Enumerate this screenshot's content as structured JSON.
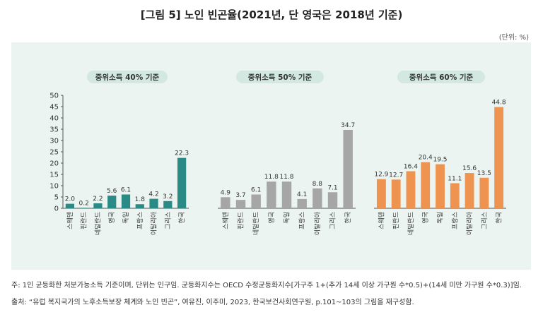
{
  "title": "[그림 5] 노인 빈곤율(2021년, 단 영국은 2018년 기준)",
  "unit": "(단위: %)",
  "notes": {
    "note": "주: 1인 균등화한 처분가능소득 기준이며, 단위는 인구임. 균등화지수는 OECD 수정균등화지수[가구주 1+(추가 14세 이상 가구원 수*0.5)+(14세 미만 가구원 수*0.3)]임.",
    "source": "출처: “유럽 복지국가의 노후소득보장 체계와 노인 빈곤”, 여유진, 이주미, 2023, 한국보건사회연구원, p.101~103의 그림을 재구성함."
  },
  "colors": {
    "panel": "#ecf4f1",
    "series_40": "#2a8a86",
    "series_50": "#a6a6a6",
    "series_60": "#ee9450",
    "pill": "#d3e8e0",
    "axis": "#555555"
  },
  "chart_data": [
    {
      "type": "bar",
      "title": "중위소득 40% 기준",
      "categories": [
        "스웨덴",
        "핀란드",
        "네덜란드",
        "영국",
        "독일",
        "프랑스",
        "이탈리아",
        "그리스",
        "한국"
      ],
      "values": [
        2.0,
        0.2,
        2.2,
        5.6,
        6.1,
        1.8,
        4.2,
        3.2,
        22.3
      ],
      "value_labels": [
        "2.0",
        "0.2",
        "2.2",
        "5.6",
        "6.1",
        "1.8",
        "4.2",
        "3.2",
        "22.3"
      ],
      "ylim": [
        0,
        50
      ],
      "yticks": [
        0,
        5,
        10,
        15,
        20,
        25,
        30,
        35,
        40,
        45,
        50
      ],
      "ytick_labels": [
        "0",
        "5",
        "10",
        "15",
        "20",
        "25",
        "30",
        "35",
        "40",
        "45",
        "50"
      ],
      "color": "#2a8a86"
    },
    {
      "type": "bar",
      "title": "중위소득 50% 기준",
      "categories": [
        "스웨덴",
        "핀란드",
        "네덜란드",
        "영국",
        "독일",
        "프랑스",
        "이탈리아",
        "그리스",
        "한국"
      ],
      "values": [
        4.9,
        3.7,
        6.1,
        11.8,
        11.8,
        4.1,
        8.8,
        7.1,
        34.7
      ],
      "value_labels": [
        "4.9",
        "3.7",
        "6.1",
        "11.8",
        "11.8",
        "4.1",
        "8.8",
        "7.1",
        "34.7"
      ],
      "ylim": [
        0,
        50
      ],
      "color": "#a6a6a6"
    },
    {
      "type": "bar",
      "title": "중위소득 60% 기준",
      "categories": [
        "스웨덴",
        "핀란드",
        "네덜란드",
        "영국",
        "독일",
        "프랑스",
        "이탈리아",
        "그리스",
        "한국"
      ],
      "values": [
        12.9,
        12.7,
        16.4,
        20.4,
        19.5,
        11.1,
        15.6,
        13.5,
        44.8
      ],
      "value_labels": [
        "12.9",
        "12.7",
        "16.4",
        "20.4",
        "19.5",
        "11.1",
        "15.6",
        "13.5",
        "44.8"
      ],
      "ylim": [
        0,
        50
      ],
      "color": "#ee9450"
    }
  ]
}
